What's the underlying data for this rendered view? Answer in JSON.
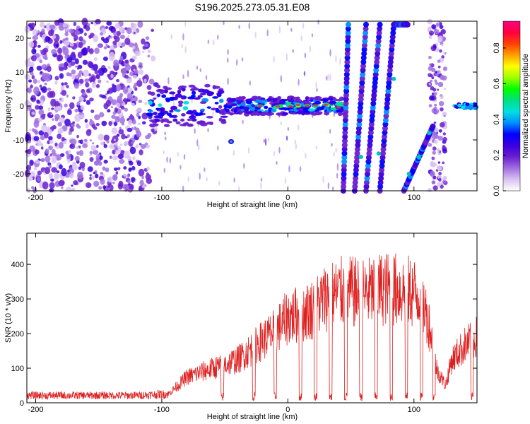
{
  "title": "S196.2025.273.05.31.E08",
  "chart_data": [
    {
      "type": "heatmap",
      "name": "spectrogram",
      "xlabel": "Height of straight line (km)",
      "ylabel": "Frequency (Hz)",
      "xlim": [
        -207,
        150
      ],
      "ylim": [
        -25,
        25
      ],
      "xticks": [
        -200,
        -100,
        0,
        100
      ],
      "yticks": [
        -20,
        -10,
        0,
        10,
        20
      ],
      "colorbar": {
        "label": "Normalized spectral amplitude",
        "range": [
          0,
          0.95
        ],
        "ticks": [
          0.0,
          0.2,
          0.4,
          0.6,
          0.8
        ],
        "colors": [
          "#ffffff",
          "#d9c2f2",
          "#a070e0",
          "#6a1fd0",
          "#3a00e0",
          "#0000ff",
          "#0090ff",
          "#00e0e0",
          "#00e080",
          "#00ff00",
          "#a0ff00",
          "#ffff00",
          "#ffa000",
          "#ff4000",
          "#ff0040",
          "#ff0080"
        ]
      },
      "features": {
        "noise_region": [
          -207,
          -100
        ],
        "horizontal_band": {
          "x": [
            -110,
            45
          ],
          "freq": 0
        },
        "diagonal_streaks": [
          {
            "x0": 44,
            "f0": -25,
            "x1": 48,
            "f1": 24
          },
          {
            "x0": 53,
            "f0": -25,
            "x1": 62,
            "f1": 24
          },
          {
            "x0": 62,
            "f0": -25,
            "x1": 73,
            "f1": 24
          },
          {
            "x0": 73,
            "f0": -25,
            "x1": 84,
            "f1": 24
          },
          {
            "x0": 84,
            "f0": 24,
            "x1": 95,
            "f1": 24
          },
          {
            "x0": 92,
            "f0": -25,
            "x1": 115,
            "f1": -6
          }
        ],
        "noise_strip": [
          112,
          125
        ],
        "right_band": {
          "x": [
            132,
            150
          ],
          "freq": 0
        }
      }
    },
    {
      "type": "line",
      "name": "snr",
      "xlabel": "Height of straight line (km)",
      "ylabel": "SNR (10 * v/v)",
      "xlim": [
        -207,
        150
      ],
      "ylim": [
        0,
        490
      ],
      "xticks": [
        -200,
        -100,
        0,
        100
      ],
      "yticks": [
        0,
        100,
        200,
        300,
        400
      ],
      "color": "#e02020",
      "envelope": [
        {
          "x": -207,
          "y": 25
        },
        {
          "x": -120,
          "y": 25
        },
        {
          "x": -95,
          "y": 30
        },
        {
          "x": -80,
          "y": 90
        },
        {
          "x": -60,
          "y": 120
        },
        {
          "x": -40,
          "y": 150
        },
        {
          "x": -20,
          "y": 220
        },
        {
          "x": -10,
          "y": 250
        },
        {
          "x": 0,
          "y": 300
        },
        {
          "x": 10,
          "y": 310
        },
        {
          "x": 20,
          "y": 330
        },
        {
          "x": 30,
          "y": 370
        },
        {
          "x": 45,
          "y": 390
        },
        {
          "x": 60,
          "y": 380
        },
        {
          "x": 75,
          "y": 400
        },
        {
          "x": 90,
          "y": 395
        },
        {
          "x": 105,
          "y": 380
        },
        {
          "x": 112,
          "y": 280
        },
        {
          "x": 118,
          "y": 120
        },
        {
          "x": 125,
          "y": 60
        },
        {
          "x": 130,
          "y": 150
        },
        {
          "x": 140,
          "y": 200
        },
        {
          "x": 150,
          "y": 230
        }
      ],
      "dropouts": [
        -52,
        -27,
        -10,
        10,
        22,
        34,
        46,
        58,
        70,
        82,
        94,
        106,
        116,
        146
      ]
    }
  ]
}
